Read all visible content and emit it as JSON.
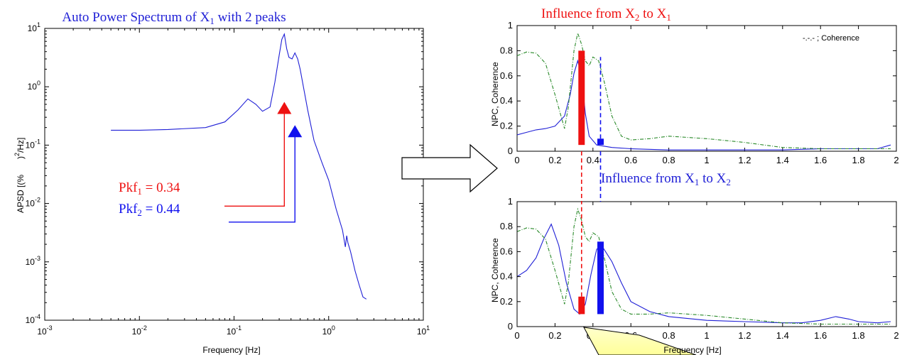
{
  "chart_data": [
    {
      "type": "line",
      "title_prefix": "Auto Power Spectrum of X",
      "title_sub": "1",
      "title_suffix": " with 2 peaks",
      "title_color": "#1f1fd6",
      "xlabel": "Frequency [Hz]",
      "ylabel_main": "APSD [(%",
      "ylabel_unit": ")",
      "ylabel_sup": "2",
      "ylabel_tail": "/Hz]",
      "xscale": "log",
      "yscale": "log",
      "xlim": [
        0.001,
        10
      ],
      "ylim": [
        0.0001,
        10
      ],
      "xtick_exponents": [
        "-3",
        "-2",
        "-1",
        "0",
        "1"
      ],
      "ytick_exponents": [
        "-4",
        "-3",
        "-2",
        "-1",
        "0",
        "1"
      ],
      "tick_base": "10",
      "series": [
        {
          "color": "#1f1fd6",
          "x": [
            0.005,
            0.01,
            0.02,
            0.05,
            0.08,
            0.11,
            0.14,
            0.17,
            0.2,
            0.24,
            0.27,
            0.3,
            0.32,
            0.34,
            0.36,
            0.38,
            0.41,
            0.44,
            0.47,
            0.5,
            0.6,
            0.7,
            0.85,
            1.0,
            1.2,
            1.4,
            1.5,
            1.55,
            1.6,
            1.7,
            1.9,
            2.1,
            2.3,
            2.5
          ],
          "y": [
            0.18,
            0.18,
            0.185,
            0.2,
            0.25,
            0.4,
            0.62,
            0.5,
            0.38,
            0.45,
            1.2,
            3.5,
            6.5,
            8.0,
            4.5,
            3.2,
            3.0,
            3.8,
            3.0,
            2.0,
            0.4,
            0.12,
            0.05,
            0.025,
            0.008,
            0.0035,
            0.0018,
            0.0028,
            0.0021,
            0.0015,
            0.0007,
            0.0004,
            0.00025,
            0.00023
          ]
        }
      ],
      "peaks": [
        {
          "label": "Pkf",
          "sub": "1",
          "text": " = 0.34",
          "freq": 0.34,
          "arrow_tip_y": 0.55,
          "arrow_base_y": 0.009,
          "color": "#ee1111"
        },
        {
          "label": "Pkf",
          "sub": "2",
          "text": " = 0.44",
          "freq": 0.44,
          "arrow_tip_y": 0.22,
          "arrow_base_y": 0.0048,
          "color": "#1111ee"
        }
      ]
    },
    {
      "type": "line",
      "title_prefix": "Influence from X",
      "title_sub1": "2",
      "title_mid": " to X",
      "title_sub2": "1",
      "title_color": "#ee1111",
      "ylabel": "NPC, Coherence",
      "legend_text": "-.-.- ; Coherence",
      "legend_position": "top-right",
      "xlim": [
        0,
        2
      ],
      "ylim": [
        0,
        1
      ],
      "xticks": [
        "0",
        "0.2",
        "0.4",
        "0.6",
        "0.8",
        "1",
        "1.2",
        "1.4",
        "1.6",
        "1.8",
        "2"
      ],
      "yticks": [
        "0",
        "0.2",
        "0.4",
        "0.6",
        "0.8",
        "1"
      ],
      "series": [
        {
          "style": "solid",
          "color": "#1f1fd6",
          "x": [
            0,
            0.05,
            0.1,
            0.15,
            0.2,
            0.25,
            0.28,
            0.3,
            0.32,
            0.34,
            0.36,
            0.38,
            0.42,
            0.5,
            0.6,
            0.8,
            1.0,
            1.2,
            1.4,
            1.6,
            1.8,
            1.9,
            1.97
          ],
          "y": [
            0.13,
            0.15,
            0.17,
            0.18,
            0.2,
            0.28,
            0.45,
            0.62,
            0.72,
            0.6,
            0.3,
            0.12,
            0.05,
            0.03,
            0.02,
            0.01,
            0.01,
            0.01,
            0.01,
            0.02,
            0.02,
            0.02,
            0.05
          ]
        },
        {
          "style": "dashdot",
          "color": "#2a8a2a",
          "x": [
            0,
            0.05,
            0.1,
            0.15,
            0.2,
            0.25,
            0.27,
            0.3,
            0.32,
            0.34,
            0.36,
            0.38,
            0.4,
            0.43,
            0.46,
            0.5,
            0.55,
            0.6,
            0.7,
            0.8,
            1.0,
            1.2,
            1.4,
            1.6,
            1.8,
            1.97
          ],
          "y": [
            0.76,
            0.79,
            0.78,
            0.7,
            0.45,
            0.18,
            0.35,
            0.8,
            0.94,
            0.85,
            0.72,
            0.68,
            0.75,
            0.72,
            0.55,
            0.28,
            0.12,
            0.09,
            0.1,
            0.12,
            0.1,
            0.07,
            0.03,
            0.02,
            0.02,
            0.02
          ]
        }
      ],
      "bars": [
        {
          "x": 0.34,
          "y0": 0.05,
          "y1": 0.8,
          "color": "#ee1111"
        },
        {
          "x": 0.44,
          "y0": 0.05,
          "y1": 0.1,
          "color": "#1111ee"
        }
      ],
      "dashed_marker": {
        "x": 0.44,
        "y0": 0.1,
        "y1": 0.75,
        "color": "#1111ee"
      }
    },
    {
      "type": "line",
      "title_prefix": "Influence from X",
      "title_sub1": "1",
      "title_mid": " to X",
      "title_sub2": "2",
      "title_color": "#1f1fd6",
      "ylabel": "NPC, Coherence",
      "xlabel": "Frequency [Hz]",
      "xlim": [
        0,
        2
      ],
      "ylim": [
        0,
        1
      ],
      "xticks": [
        "0",
        "0.2",
        "0.4",
        "0.6",
        "0.8",
        "1",
        "1.2",
        "1.4",
        "1.6",
        "1.8",
        "2"
      ],
      "yticks": [
        "0",
        "0.2",
        "0.4",
        "0.6",
        "0.8",
        "1"
      ],
      "series": [
        {
          "style": "solid",
          "color": "#1f1fd6",
          "x": [
            0,
            0.05,
            0.1,
            0.14,
            0.18,
            0.22,
            0.26,
            0.3,
            0.33,
            0.36,
            0.39,
            0.42,
            0.45,
            0.5,
            0.55,
            0.6,
            0.7,
            0.8,
            1.0,
            1.2,
            1.4,
            1.5,
            1.6,
            1.68,
            1.75,
            1.8,
            1.9,
            1.97
          ],
          "y": [
            0.4,
            0.45,
            0.55,
            0.7,
            0.82,
            0.65,
            0.35,
            0.14,
            0.1,
            0.18,
            0.42,
            0.62,
            0.64,
            0.52,
            0.35,
            0.2,
            0.12,
            0.08,
            0.05,
            0.04,
            0.03,
            0.03,
            0.05,
            0.08,
            0.06,
            0.04,
            0.03,
            0.04
          ]
        },
        {
          "style": "dashdot",
          "color": "#2a8a2a",
          "x": [
            0,
            0.05,
            0.1,
            0.15,
            0.2,
            0.25,
            0.27,
            0.3,
            0.32,
            0.34,
            0.36,
            0.38,
            0.4,
            0.43,
            0.46,
            0.5,
            0.55,
            0.6,
            0.7,
            0.8,
            1.0,
            1.2,
            1.4,
            1.6,
            1.8,
            1.97
          ],
          "y": [
            0.76,
            0.79,
            0.78,
            0.7,
            0.45,
            0.18,
            0.35,
            0.8,
            0.94,
            0.85,
            0.72,
            0.68,
            0.75,
            0.72,
            0.55,
            0.28,
            0.14,
            0.1,
            0.1,
            0.11,
            0.09,
            0.06,
            0.03,
            0.02,
            0.02,
            0.02
          ]
        }
      ],
      "bars": [
        {
          "x": 0.34,
          "y0": 0.1,
          "y1": 0.24,
          "color": "#ee1111"
        },
        {
          "x": 0.44,
          "y0": 0.1,
          "y1": 0.68,
          "color": "#1111ee"
        }
      ],
      "dashed_marker": {
        "x": 0.34,
        "y0": 0.24,
        "y1": 1.0,
        "color": "#ee1111"
      }
    }
  ]
}
